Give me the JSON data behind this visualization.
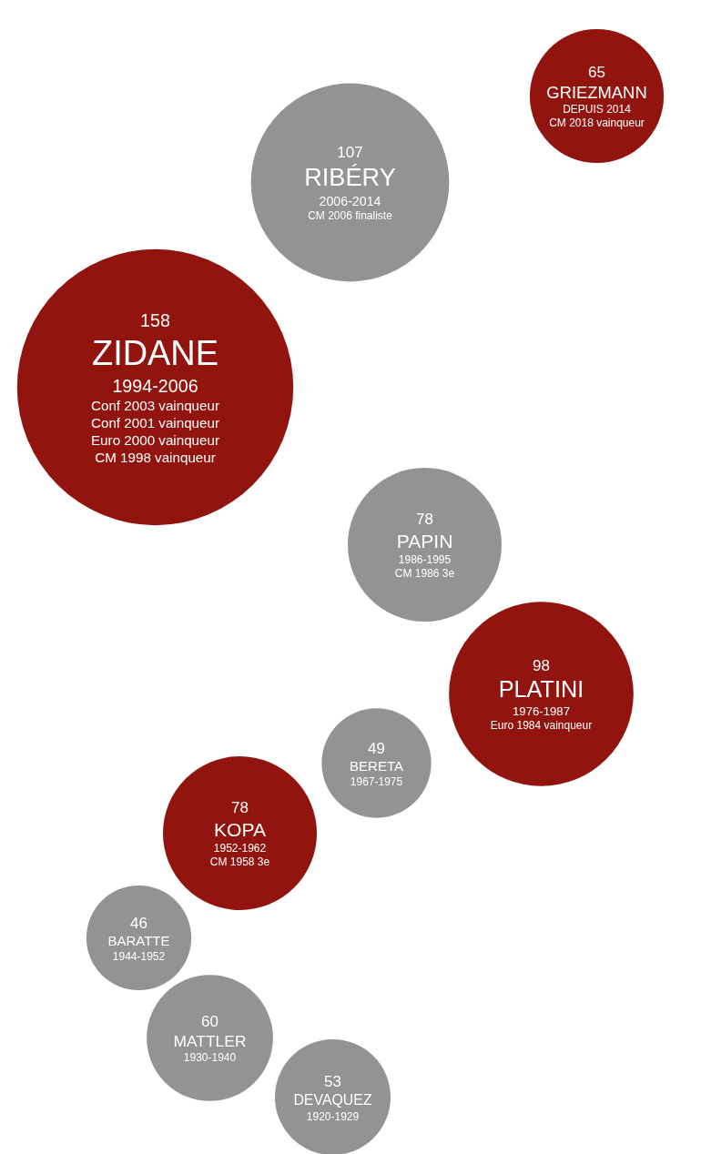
{
  "chart_data": {
    "type": "other",
    "categories": [
      "GRIEZMANN",
      "RIBÉRY",
      "ZIDANE",
      "PAPIN",
      "PLATINI",
      "BERETA",
      "KOPA",
      "BARATTE",
      "MATTLER",
      "DEVAQUEZ"
    ],
    "values": [
      65,
      107,
      158,
      78,
      98,
      49,
      78,
      46,
      60,
      53
    ],
    "colors": [
      "#92140f",
      "#939393",
      "#92140f",
      "#939393",
      "#92140f",
      "#939393",
      "#92140f",
      "#939393",
      "#939393",
      "#939393"
    ],
    "annotations": [
      "DEPUIS 2014\nCM 2018 vainqueur",
      "2006-2014\nCM 2006 finaliste",
      "1994-2006\nConf 2003 vainqueur\nConf 2001 vainqueur\nEuro 2000 vainqueur\nCM 1998 vainqueur",
      "1986-1995\nCM 1986 3e",
      "1976-1987\nEuro 1984 vainqueur",
      "1967-1975",
      "1952-1962\nCM 1958 3e",
      "1944-1952",
      "1930-1940",
      "1920-1929"
    ],
    "data_labels": true
  }
}
